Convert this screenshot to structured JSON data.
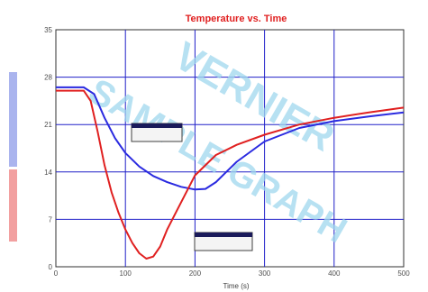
{
  "chart_data": {
    "type": "line",
    "title": "Temperature vs. Time",
    "xlabel": "Time (s)",
    "ylabel": "",
    "xlim": [
      0,
      500
    ],
    "ylim": [
      0,
      35
    ],
    "x_ticks": [
      0,
      100,
      200,
      300,
      400,
      500
    ],
    "y_ticks": [
      0,
      7,
      14,
      21,
      28,
      35
    ],
    "grid": true,
    "series": [
      {
        "color": "#2a2ae0",
        "x": [
          0,
          20,
          40,
          55,
          70,
          85,
          100,
          120,
          140,
          160,
          180,
          200,
          215,
          230,
          260,
          300,
          350,
          400,
          450,
          500
        ],
        "y": [
          26.5,
          26.5,
          26.5,
          25.5,
          22,
          19,
          16.8,
          14.8,
          13.4,
          12.5,
          11.8,
          11.4,
          11.5,
          12.5,
          15.5,
          18.5,
          20.5,
          21.5,
          22.2,
          22.8
        ]
      },
      {
        "color": "#e02020",
        "x": [
          0,
          20,
          40,
          50,
          60,
          70,
          80,
          90,
          100,
          110,
          120,
          130,
          140,
          150,
          160,
          175,
          190,
          200,
          230,
          260,
          300,
          350,
          400,
          450,
          500
        ],
        "y": [
          26,
          26,
          26,
          24.5,
          20,
          15,
          11,
          8,
          5.5,
          3.5,
          2,
          1.2,
          1.5,
          3,
          5.5,
          8.5,
          11.5,
          13.5,
          16.5,
          18,
          19.5,
          21,
          22,
          22.8,
          23.5
        ]
      }
    ],
    "legend": "left"
  },
  "watermark": [
    "VERNIER",
    "SAMPLE GRAPH"
  ],
  "colors": {
    "grid": "#2020c8",
    "plot_background": "#ffffff",
    "legend_blue": "#aab4ee",
    "legend_red": "#f2a0a0"
  }
}
